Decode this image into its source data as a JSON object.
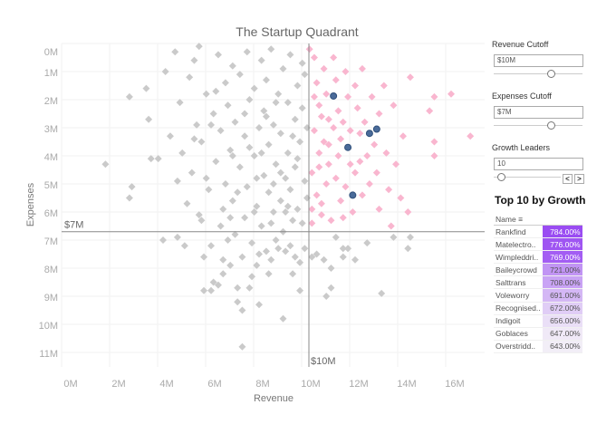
{
  "chart_data": {
    "type": "scatter",
    "title": "The Startup Quadrant",
    "xlabel": "Revenue",
    "ylabel": "Expenses",
    "xlim": [
      -0.1,
      17.7
    ],
    "ylim": [
      0,
      11.5
    ],
    "y_reversed": true,
    "x_ticks": [
      "0M",
      "2M",
      "4M",
      "6M",
      "8M",
      "10M",
      "12M",
      "14M",
      "16M"
    ],
    "x_tick_values": [
      0,
      2,
      4,
      6,
      8,
      10,
      12,
      14,
      16
    ],
    "y_ticks": [
      "0M",
      "1M",
      "2M",
      "3M",
      "4M",
      "5M",
      "6M",
      "7M",
      "8M",
      "9M",
      "10M",
      "11M"
    ],
    "y_tick_values": [
      0,
      1,
      2,
      3,
      4,
      5,
      6,
      7,
      8,
      9,
      10,
      11
    ],
    "grid": true,
    "reference_lines": {
      "x": 10,
      "x_label": "$10M",
      "y": 6.7,
      "y_label": "$7M"
    },
    "colors": {
      "base": "#cacaca",
      "quadrant": "#f9b6cf",
      "leader": "#4a6b99"
    },
    "leaders": [
      [
        11.1,
        1.87
      ],
      [
        11.7,
        3.7
      ],
      [
        12.6,
        3.2
      ],
      [
        12.9,
        3.05
      ],
      [
        11.9,
        5.4
      ]
    ],
    "points": [
      [
        1.6,
        4.3
      ],
      [
        2.6,
        1.9
      ],
      [
        2.7,
        5.1
      ],
      [
        2.6,
        5.5
      ],
      [
        3.3,
        1.6
      ],
      [
        3.4,
        2.7
      ],
      [
        3.5,
        4.1
      ],
      [
        3.8,
        4.1
      ],
      [
        4.0,
        7.0
      ],
      [
        4.1,
        1.0
      ],
      [
        4.3,
        3.3
      ],
      [
        4.5,
        0.3
      ],
      [
        4.6,
        6.9
      ],
      [
        4.7,
        2.1
      ],
      [
        4.8,
        3.9
      ],
      [
        4.9,
        7.2
      ],
      [
        5.0,
        5.7
      ],
      [
        5.1,
        1.2
      ],
      [
        5.2,
        4.6
      ],
      [
        5.3,
        0.6
      ],
      [
        5.4,
        2.9
      ],
      [
        5.5,
        0.1
      ],
      [
        5.5,
        6.1
      ],
      [
        5.6,
        3.5
      ],
      [
        5.7,
        7.6
      ],
      [
        5.7,
        8.8
      ],
      [
        5.8,
        1.8
      ],
      [
        5.9,
        5.2
      ],
      [
        6.0,
        8.8
      ],
      [
        6.0,
        7.2
      ],
      [
        6.1,
        2.5
      ],
      [
        6.1,
        8.5
      ],
      [
        6.2,
        4.2
      ],
      [
        6.3,
        0.4
      ],
      [
        6.3,
        8.6
      ],
      [
        6.4,
        6.5
      ],
      [
        6.4,
        3.1
      ],
      [
        6.5,
        7.7
      ],
      [
        6.5,
        8.2
      ],
      [
        6.6,
        1.4
      ],
      [
        6.6,
        5.0
      ],
      [
        6.7,
        2.2
      ],
      [
        6.7,
        7.0
      ],
      [
        6.8,
        3.8
      ],
      [
        6.8,
        7.9
      ],
      [
        6.9,
        0.8
      ],
      [
        6.9,
        5.6
      ],
      [
        7.0,
        6.8
      ],
      [
        7.0,
        2.8
      ],
      [
        7.1,
        8.7
      ],
      [
        7.1,
        9.2
      ],
      [
        7.2,
        4.4
      ],
      [
        7.2,
        1.1
      ],
      [
        7.3,
        7.6
      ],
      [
        7.3,
        10.8
      ],
      [
        7.3,
        9.5
      ],
      [
        7.4,
        3.3
      ],
      [
        7.4,
        6.2
      ],
      [
        7.5,
        0.3
      ],
      [
        7.5,
        5.1
      ],
      [
        7.6,
        8.7
      ],
      [
        7.6,
        2.0
      ],
      [
        7.7,
        7.1
      ],
      [
        7.7,
        8.3
      ],
      [
        7.8,
        4.0
      ],
      [
        7.8,
        1.6
      ],
      [
        7.9,
        7.9
      ],
      [
        7.9,
        5.8
      ],
      [
        8.0,
        9.3
      ],
      [
        8.0,
        3.0
      ],
      [
        8.0,
        7.5
      ],
      [
        8.1,
        0.6
      ],
      [
        8.1,
        6.5
      ],
      [
        8.2,
        4.7
      ],
      [
        8.2,
        2.4
      ],
      [
        8.3,
        7.4
      ],
      [
        8.3,
        1.3
      ],
      [
        8.4,
        8.2
      ],
      [
        8.4,
        5.3
      ],
      [
        8.4,
        3.6
      ],
      [
        8.5,
        7.7
      ],
      [
        8.5,
        0.2
      ],
      [
        8.6,
        6.0
      ],
      [
        8.6,
        2.9
      ],
      [
        8.7,
        7.0
      ],
      [
        8.7,
        4.3
      ],
      [
        8.8,
        1.8
      ],
      [
        8.8,
        7.3
      ],
      [
        8.9,
        5.6
      ],
      [
        8.9,
        3.2
      ],
      [
        9.0,
        9.8
      ],
      [
        9.0,
        0.9
      ],
      [
        9.0,
        6.7
      ],
      [
        9.1,
        4.8
      ],
      [
        9.1,
        7.4
      ],
      [
        9.2,
        2.1
      ],
      [
        9.2,
        3.9
      ],
      [
        9.3,
        7.2
      ],
      [
        9.3,
        5.2
      ],
      [
        9.3,
        0.4
      ],
      [
        9.4,
        8.2
      ],
      [
        9.4,
        6.3
      ],
      [
        9.5,
        2.7
      ],
      [
        9.5,
        7.6
      ],
      [
        9.5,
        4.4
      ],
      [
        9.6,
        1.5
      ],
      [
        9.6,
        5.9
      ],
      [
        9.7,
        8.8
      ],
      [
        9.7,
        7.8
      ],
      [
        9.7,
        3.5
      ],
      [
        9.8,
        0.7
      ],
      [
        9.8,
        6.4
      ],
      [
        9.8,
        2.3
      ],
      [
        9.9,
        4.9
      ],
      [
        9.9,
        7.3
      ],
      [
        9.9,
        1.1
      ],
      [
        10.0,
        5.5
      ],
      [
        10.0,
        3.0
      ],
      [
        6.2,
        1.7
      ],
      [
        6.9,
        4.0
      ],
      [
        7.6,
        3.7
      ],
      [
        8.3,
        2.6
      ],
      [
        8.9,
        4.6
      ],
      [
        9.4,
        3.3
      ],
      [
        5.8,
        4.8
      ],
      [
        6.5,
        5.9
      ],
      [
        7.1,
        5.3
      ],
      [
        7.8,
        6.0
      ],
      [
        8.6,
        5.0
      ],
      [
        9.2,
        5.8
      ],
      [
        5.3,
        3.4
      ],
      [
        6.0,
        2.9
      ],
      [
        7.4,
        2.5
      ],
      [
        8.1,
        3.9
      ],
      [
        8.7,
        2.1
      ],
      [
        9.6,
        4.1
      ],
      [
        4.6,
        4.9
      ],
      [
        5.6,
        6.3
      ],
      [
        6.8,
        6.2
      ],
      [
        7.9,
        4.8
      ],
      [
        8.5,
        6.4
      ],
      [
        9.1,
        6.0
      ],
      [
        10.2,
        7.6
      ],
      [
        10.4,
        7.5
      ],
      [
        10.7,
        7.7
      ],
      [
        10.8,
        9.0
      ],
      [
        11.0,
        8.0
      ],
      [
        11.0,
        8.7
      ],
      [
        11.2,
        6.9
      ],
      [
        11.5,
        7.3
      ],
      [
        11.5,
        7.6
      ],
      [
        11.7,
        7.3
      ],
      [
        12.0,
        7.7
      ],
      [
        12.5,
        7.1
      ],
      [
        13.1,
        8.9
      ],
      [
        13.6,
        6.9
      ],
      [
        14.2,
        7.3
      ],
      [
        14.3,
        6.9
      ],
      [
        10.1,
        0.2
      ],
      [
        10.3,
        0.5
      ],
      [
        10.4,
        1.4
      ],
      [
        10.5,
        2.2
      ],
      [
        10.3,
        3.1
      ],
      [
        10.5,
        3.9
      ],
      [
        10.2,
        4.6
      ],
      [
        10.4,
        5.4
      ],
      [
        10.6,
        6.1
      ],
      [
        10.2,
        6.4
      ],
      [
        10.7,
        0.9
      ],
      [
        10.8,
        1.8
      ],
      [
        10.9,
        2.7
      ],
      [
        10.7,
        3.5
      ],
      [
        10.9,
        4.3
      ],
      [
        10.8,
        5.0
      ],
      [
        10.6,
        5.7
      ],
      [
        11.0,
        6.3
      ],
      [
        11.1,
        0.5
      ],
      [
        11.2,
        1.3
      ],
      [
        11.3,
        2.4
      ],
      [
        11.1,
        3.0
      ],
      [
        11.3,
        4.0
      ],
      [
        11.2,
        4.8
      ],
      [
        11.4,
        5.6
      ],
      [
        11.5,
        6.2
      ],
      [
        11.6,
        1.0
      ],
      [
        11.7,
        1.9
      ],
      [
        11.5,
        2.8
      ],
      [
        11.8,
        4.3
      ],
      [
        11.6,
        5.1
      ],
      [
        11.9,
        6.0
      ],
      [
        12.0,
        1.5
      ],
      [
        12.1,
        2.3
      ],
      [
        12.2,
        3.2
      ],
      [
        12.0,
        4.6
      ],
      [
        12.3,
        5.4
      ],
      [
        12.3,
        0.9
      ],
      [
        12.4,
        2.8
      ],
      [
        12.5,
        4.0
      ],
      [
        12.6,
        5.0
      ],
      [
        12.7,
        1.9
      ],
      [
        12.8,
        3.6
      ],
      [
        12.9,
        4.6
      ],
      [
        13.0,
        5.9
      ],
      [
        13.0,
        2.5
      ],
      [
        13.2,
        1.5
      ],
      [
        13.3,
        3.9
      ],
      [
        13.4,
        5.2
      ],
      [
        13.5,
        6.5
      ],
      [
        13.6,
        2.2
      ],
      [
        13.7,
        4.3
      ],
      [
        13.9,
        5.5
      ],
      [
        14.0,
        3.3
      ],
      [
        14.2,
        6.0
      ],
      [
        14.3,
        1.2
      ],
      [
        15.1,
        2.4
      ],
      [
        15.3,
        1.9
      ],
      [
        15.3,
        3.5
      ],
      [
        15.3,
        4.0
      ],
      [
        16.0,
        1.8
      ],
      [
        16.8,
        3.3
      ],
      [
        10.3,
        1.9
      ],
      [
        10.5,
        4.4
      ],
      [
        10.9,
        3.6
      ],
      [
        11.4,
        3.4
      ],
      [
        12.2,
        4.2
      ],
      [
        10.6,
        2.6
      ],
      [
        11.8,
        3.1
      ],
      [
        10.2,
        5.9
      ]
    ]
  },
  "controls": [
    {
      "label": "Revenue Cutoff",
      "value": "$10M",
      "slider": 0.6
    },
    {
      "label": "Expenses Cutoff",
      "value": "$7M",
      "slider": 0.6
    },
    {
      "label": "Growth Leaders",
      "value": "10",
      "slider": 0.05,
      "prev": "<",
      "next": ">"
    }
  ],
  "table": {
    "title": "Top 10 by Growth",
    "header": "Name",
    "rows": [
      {
        "name": "Rankfind",
        "growth": "784.00%",
        "v": 784
      },
      {
        "name": "Matelectro..",
        "growth": "776.00%",
        "v": 776
      },
      {
        "name": "Wimpleddri..",
        "growth": "769.00%",
        "v": 769
      },
      {
        "name": "Baileycrowd",
        "growth": "721.00%",
        "v": 721
      },
      {
        "name": "Salttrans",
        "growth": "708.00%",
        "v": 708
      },
      {
        "name": "Voleworry",
        "growth": "691.00%",
        "v": 691
      },
      {
        "name": "Recognised..",
        "growth": "672.00%",
        "v": 672
      },
      {
        "name": "Indigoit",
        "growth": "656.00%",
        "v": 656
      },
      {
        "name": "Goblaces",
        "growth": "647.00%",
        "v": 647
      },
      {
        "name": "Overstridd..",
        "growth": "643.00%",
        "v": 643
      }
    ],
    "color_max": "#9a4cf2",
    "color_min": "#f2eef7"
  }
}
